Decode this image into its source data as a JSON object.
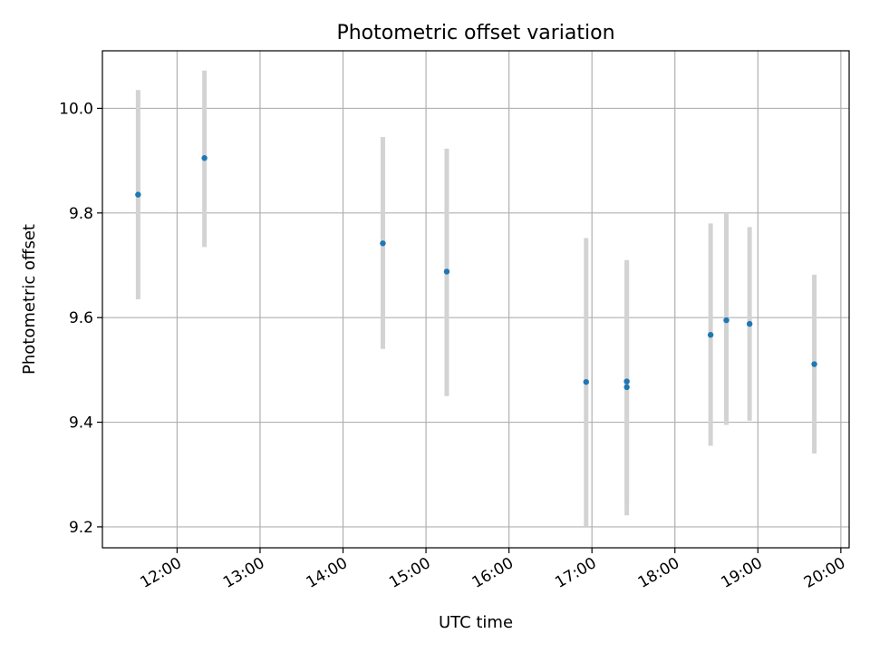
{
  "chart_data": {
    "type": "scatter",
    "title": "Photometric offset variation",
    "xlabel": "UTC time",
    "ylabel": "Photometric offset",
    "x_unit": "hours (UTC)",
    "xlim": [
      11.1,
      20.1
    ],
    "ylim": [
      9.16,
      10.11
    ],
    "x_ticks": [
      {
        "value": 12,
        "label": "12:00"
      },
      {
        "value": 13,
        "label": "13:00"
      },
      {
        "value": 14,
        "label": "14:00"
      },
      {
        "value": 15,
        "label": "15:00"
      },
      {
        "value": 16,
        "label": "16:00"
      },
      {
        "value": 17,
        "label": "17:00"
      },
      {
        "value": 18,
        "label": "18:00"
      },
      {
        "value": 19,
        "label": "19:00"
      },
      {
        "value": 20,
        "label": "20:00"
      }
    ],
    "y_ticks": [
      {
        "value": 9.2,
        "label": "9.2"
      },
      {
        "value": 9.4,
        "label": "9.4"
      },
      {
        "value": 9.6,
        "label": "9.6"
      },
      {
        "value": 9.8,
        "label": "9.8"
      },
      {
        "value": 10.0,
        "label": "10.0"
      }
    ],
    "grid": true,
    "colors": {
      "point": "#1f77b4",
      "errorbar": "#d3d3d3",
      "grid": "#b0b0b0"
    },
    "points": [
      {
        "time": "11:32",
        "x": 11.53,
        "y": 9.835,
        "ylow": 9.635,
        "yhigh": 10.035
      },
      {
        "time": "12:20",
        "x": 12.33,
        "y": 9.905,
        "ylow": 9.735,
        "yhigh": 10.072
      },
      {
        "time": "14:29",
        "x": 14.48,
        "y": 9.742,
        "ylow": 9.54,
        "yhigh": 9.945
      },
      {
        "time": "15:15",
        "x": 15.25,
        "y": 9.688,
        "ylow": 9.45,
        "yhigh": 9.923
      },
      {
        "time": "16:56",
        "x": 16.93,
        "y": 9.477,
        "ylow": 9.2,
        "yhigh": 9.752
      },
      {
        "time": "17:25",
        "x": 17.42,
        "y": 9.478,
        "ylow": 9.245,
        "yhigh": 9.71
      },
      {
        "time": "17:25",
        "x": 17.42,
        "y": 9.467,
        "ylow": 9.222,
        "yhigh": 9.707
      },
      {
        "time": "18:26",
        "x": 18.43,
        "y": 9.567,
        "ylow": 9.355,
        "yhigh": 9.78
      },
      {
        "time": "18:37",
        "x": 18.62,
        "y": 9.595,
        "ylow": 9.395,
        "yhigh": 9.8
      },
      {
        "time": "18:55",
        "x": 18.9,
        "y": 9.588,
        "ylow": 9.403,
        "yhigh": 9.773
      },
      {
        "time": "19:41",
        "x": 19.68,
        "y": 9.511,
        "ylow": 9.34,
        "yhigh": 9.682
      }
    ]
  }
}
